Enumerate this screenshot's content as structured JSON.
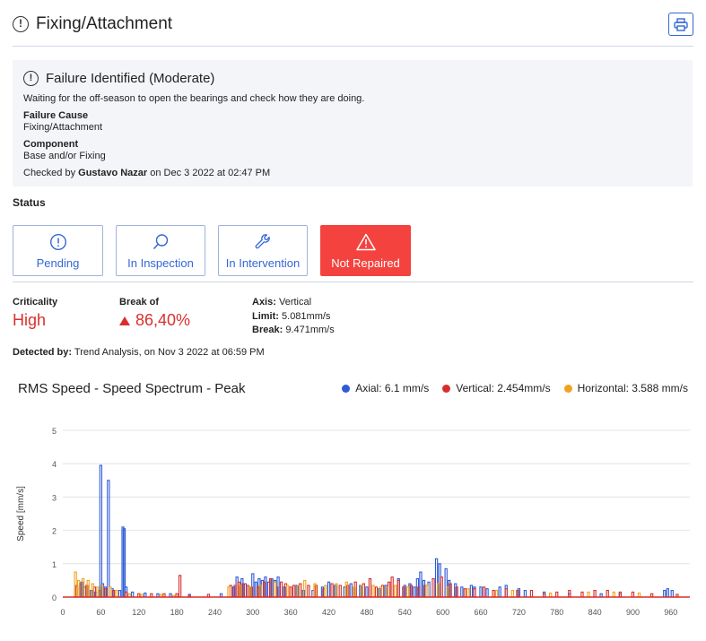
{
  "header": {
    "title": "Fixing/Attachment",
    "alert_glyph": "!"
  },
  "failure": {
    "title": "Failure Identified (Moderate)",
    "description": "Waiting for the off-season to open the bearings and check how they are doing.",
    "cause_label": "Failure Cause",
    "cause_value": "Fixing/Attachment",
    "component_label": "Component",
    "component_value": "Base and/or Fixing",
    "checked_prefix": "Checked by",
    "checked_by": "Gustavo Nazar",
    "checked_suffix": "on Dec 3 2022 at 02:47 PM"
  },
  "status": {
    "label": "Status",
    "buttons": [
      {
        "label": "Pending",
        "icon": "alert-circle-icon",
        "active": false
      },
      {
        "label": "In Inspection",
        "icon": "search-icon",
        "active": false
      },
      {
        "label": "In Intervention",
        "icon": "wrench-icon",
        "active": false
      },
      {
        "label": "Not Repaired",
        "icon": "warning-triangle-icon",
        "active": true
      }
    ]
  },
  "criticality": {
    "label": "Criticality",
    "value": "High"
  },
  "break_of": {
    "label": "Break of",
    "value": "86,40%"
  },
  "axis_info": {
    "axis_label": "Axis:",
    "axis_value": "Vertical",
    "limit_label": "Limit:",
    "limit_value": "5.081mm/s",
    "break_label": "Break:",
    "break_value": "9.471mm/s"
  },
  "detected": {
    "label": "Detected by:",
    "value": "Trend Analysis, on Nov 3 2022 at 06:59 PM"
  },
  "colors": {
    "accent": "#3367d6",
    "danger": "#f4433f",
    "axial": "#2e5bd6",
    "vertical": "#d62f2a",
    "horizontal": "#f0a21f"
  },
  "chart_data": {
    "type": "bar",
    "title": "RMS Speed - Speed Spectrum - Peak",
    "ylabel": "Speed [mm/s]",
    "xlabel": "",
    "ylim": [
      0,
      5
    ],
    "xlim": [
      0,
      990
    ],
    "x_ticks": [
      "0",
      "60",
      "120",
      "180",
      "240",
      "300",
      "360",
      "420",
      "480",
      "540",
      "600",
      "660",
      "720",
      "780",
      "840",
      "900",
      "960"
    ],
    "y_ticks": [
      "0",
      "1",
      "2",
      "3",
      "4",
      "5"
    ],
    "grid": true,
    "legend_position": "top-right",
    "series": [
      {
        "name": "Axial: 6.1 mm/s",
        "color": "#2e5bd6",
        "points": [
          [
            22,
            0.35
          ],
          [
            30,
            0.45
          ],
          [
            35,
            0.3
          ],
          [
            45,
            0.2
          ],
          [
            52,
            0.15
          ],
          [
            60,
            3.95
          ],
          [
            63,
            0.4
          ],
          [
            67,
            0.3
          ],
          [
            72,
            3.5
          ],
          [
            78,
            0.25
          ],
          [
            90,
            0.2
          ],
          [
            95,
            2.1
          ],
          [
            97,
            2.05
          ],
          [
            100,
            0.3
          ],
          [
            110,
            0.15
          ],
          [
            130,
            0.12
          ],
          [
            150,
            0.1
          ],
          [
            170,
            0.1
          ],
          [
            200,
            0.08
          ],
          [
            250,
            0.1
          ],
          [
            270,
            0.3
          ],
          [
            275,
            0.6
          ],
          [
            283,
            0.55
          ],
          [
            288,
            0.4
          ],
          [
            295,
            0.3
          ],
          [
            300,
            0.7
          ],
          [
            305,
            0.45
          ],
          [
            310,
            0.55
          ],
          [
            315,
            0.5
          ],
          [
            320,
            0.6
          ],
          [
            325,
            0.45
          ],
          [
            330,
            0.55
          ],
          [
            335,
            0.5
          ],
          [
            340,
            0.6
          ],
          [
            350,
            0.3
          ],
          [
            370,
            0.35
          ],
          [
            380,
            0.2
          ],
          [
            395,
            0.2
          ],
          [
            410,
            0.3
          ],
          [
            420,
            0.45
          ],
          [
            430,
            0.35
          ],
          [
            445,
            0.3
          ],
          [
            455,
            0.4
          ],
          [
            470,
            0.35
          ],
          [
            480,
            0.3
          ],
          [
            500,
            0.25
          ],
          [
            510,
            0.35
          ],
          [
            530,
            0.55
          ],
          [
            540,
            0.35
          ],
          [
            548,
            0.4
          ],
          [
            555,
            0.3
          ],
          [
            560,
            0.55
          ],
          [
            565,
            0.75
          ],
          [
            570,
            0.5
          ],
          [
            578,
            0.45
          ],
          [
            590,
            1.15
          ],
          [
            595,
            1.0
          ],
          [
            605,
            0.85
          ],
          [
            610,
            0.5
          ],
          [
            620,
            0.4
          ],
          [
            630,
            0.3
          ],
          [
            645,
            0.35
          ],
          [
            650,
            0.3
          ],
          [
            660,
            0.3
          ],
          [
            670,
            0.25
          ],
          [
            690,
            0.3
          ],
          [
            700,
            0.35
          ],
          [
            720,
            0.25
          ],
          [
            730,
            0.2
          ],
          [
            760,
            0.15
          ],
          [
            800,
            0.1
          ],
          [
            850,
            0.1
          ],
          [
            880,
            0.1
          ],
          [
            950,
            0.2
          ],
          [
            955,
            0.25
          ],
          [
            962,
            0.2
          ]
        ]
      },
      {
        "name": "Vertical: 2.454mm/s",
        "color": "#d62f2a",
        "points": [
          [
            22,
            0.3
          ],
          [
            28,
            0.4
          ],
          [
            38,
            0.35
          ],
          [
            50,
            0.3
          ],
          [
            58,
            0.2
          ],
          [
            68,
            0.25
          ],
          [
            80,
            0.2
          ],
          [
            100,
            0.15
          ],
          [
            120,
            0.1
          ],
          [
            140,
            0.1
          ],
          [
            160,
            0.1
          ],
          [
            180,
            0.1
          ],
          [
            185,
            0.65
          ],
          [
            200,
            0.05
          ],
          [
            230,
            0.08
          ],
          [
            265,
            0.35
          ],
          [
            272,
            0.35
          ],
          [
            278,
            0.45
          ],
          [
            285,
            0.4
          ],
          [
            292,
            0.35
          ],
          [
            298,
            0.3
          ],
          [
            308,
            0.3
          ],
          [
            318,
            0.45
          ],
          [
            328,
            0.55
          ],
          [
            338,
            0.3
          ],
          [
            345,
            0.45
          ],
          [
            352,
            0.4
          ],
          [
            360,
            0.3
          ],
          [
            365,
            0.35
          ],
          [
            375,
            0.4
          ],
          [
            388,
            0.35
          ],
          [
            400,
            0.35
          ],
          [
            412,
            0.25
          ],
          [
            425,
            0.4
          ],
          [
            438,
            0.35
          ],
          [
            450,
            0.35
          ],
          [
            462,
            0.45
          ],
          [
            475,
            0.4
          ],
          [
            485,
            0.55
          ],
          [
            495,
            0.3
          ],
          [
            505,
            0.35
          ],
          [
            515,
            0.45
          ],
          [
            520,
            0.6
          ],
          [
            530,
            0.5
          ],
          [
            538,
            0.3
          ],
          [
            550,
            0.35
          ],
          [
            562,
            0.3
          ],
          [
            572,
            0.35
          ],
          [
            585,
            0.55
          ],
          [
            598,
            0.6
          ],
          [
            612,
            0.4
          ],
          [
            622,
            0.3
          ],
          [
            635,
            0.25
          ],
          [
            650,
            0.25
          ],
          [
            665,
            0.3
          ],
          [
            680,
            0.2
          ],
          [
            700,
            0.25
          ],
          [
            718,
            0.2
          ],
          [
            740,
            0.2
          ],
          [
            760,
            0.1
          ],
          [
            780,
            0.15
          ],
          [
            800,
            0.2
          ],
          [
            820,
            0.15
          ],
          [
            840,
            0.2
          ],
          [
            860,
            0.2
          ],
          [
            880,
            0.15
          ],
          [
            900,
            0.15
          ],
          [
            930,
            0.1
          ],
          [
            970,
            0.08
          ]
        ]
      },
      {
        "name": "Horizontal: 3.588 mm/s",
        "color": "#f0a21f",
        "points": [
          [
            20,
            0.75
          ],
          [
            25,
            0.5
          ],
          [
            32,
            0.55
          ],
          [
            40,
            0.5
          ],
          [
            47,
            0.4
          ],
          [
            55,
            0.3
          ],
          [
            62,
            0.35
          ],
          [
            75,
            0.3
          ],
          [
            85,
            0.2
          ],
          [
            105,
            0.1
          ],
          [
            125,
            0.08
          ],
          [
            155,
            0.08
          ],
          [
            175,
            0.05
          ],
          [
            262,
            0.3
          ],
          [
            280,
            0.35
          ],
          [
            296,
            0.3
          ],
          [
            312,
            0.35
          ],
          [
            335,
            0.45
          ],
          [
            355,
            0.35
          ],
          [
            372,
            0.35
          ],
          [
            382,
            0.5
          ],
          [
            398,
            0.4
          ],
          [
            415,
            0.35
          ],
          [
            432,
            0.4
          ],
          [
            448,
            0.45
          ],
          [
            460,
            0.3
          ],
          [
            472,
            0.35
          ],
          [
            490,
            0.35
          ],
          [
            502,
            0.3
          ],
          [
            512,
            0.3
          ],
          [
            525,
            0.35
          ],
          [
            545,
            0.3
          ],
          [
            575,
            0.35
          ],
          [
            593,
            0.4
          ],
          [
            608,
            0.3
          ],
          [
            640,
            0.25
          ],
          [
            685,
            0.2
          ],
          [
            710,
            0.2
          ],
          [
            770,
            0.12
          ],
          [
            830,
            0.15
          ],
          [
            870,
            0.15
          ],
          [
            910,
            0.12
          ]
        ]
      }
    ]
  }
}
